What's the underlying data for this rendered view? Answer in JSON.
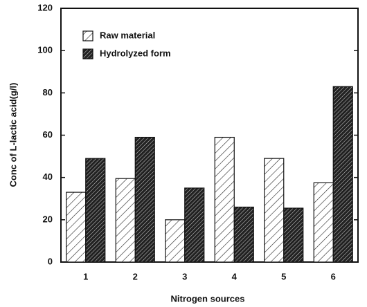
{
  "chart_data": {
    "type": "bar",
    "xlabel": "Nitrogen sources",
    "ylabel": "Conc of L-lactic acid(g/l)",
    "categories": [
      "1",
      "2",
      "3",
      "4",
      "5",
      "6"
    ],
    "series": [
      {
        "name": "Raw material",
        "color": "#ffffff",
        "values": [
          33,
          39.5,
          20,
          59,
          49,
          37.5
        ]
      },
      {
        "name": "Hydrolyzed form",
        "color": "#222222",
        "values": [
          49,
          59,
          35,
          26,
          25.5,
          83
        ]
      }
    ],
    "ylim": [
      0,
      120
    ],
    "yticks": [
      0,
      20,
      40,
      60,
      80,
      100,
      120
    ],
    "grid": false,
    "legend": "upper left"
  }
}
